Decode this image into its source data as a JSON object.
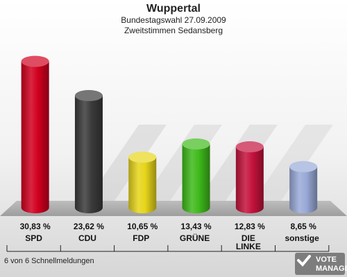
{
  "chart_data": {
    "type": "bar",
    "title": "Wuppertal",
    "subtitle_1": "Bundestagswahl 27.09.2009",
    "subtitle_2": "Zweitstimmen Sedansberg",
    "categories": [
      "SPD",
      "CDU",
      "FDP",
      "GRÜNE",
      "DIE LINKE",
      "sonstige"
    ],
    "category_lines": [
      [
        "SPD"
      ],
      [
        "CDU"
      ],
      [
        "FDP"
      ],
      [
        "GRÜNE"
      ],
      [
        "DIE",
        "LINKE"
      ],
      [
        "sonstige"
      ]
    ],
    "values": [
      30.83,
      23.62,
      10.65,
      13.43,
      12.83,
      8.65
    ],
    "value_labels": [
      "30,83 %",
      "23,62 %",
      "10,65 %",
      "13,43 %",
      "12,83 %",
      "8,65 %"
    ],
    "colors": [
      "#d1001f",
      "#3b3b3b",
      "#e6d51a",
      "#3fba1b",
      "#c4123c",
      "#9aaad8"
    ],
    "ylim": [
      0,
      35
    ],
    "grid": false,
    "legend": "none"
  },
  "footer": {
    "note": "6 von 6 Schnellmeldungen"
  },
  "logo": {
    "line1": "VOTE",
    "line2": "MANAGER"
  }
}
